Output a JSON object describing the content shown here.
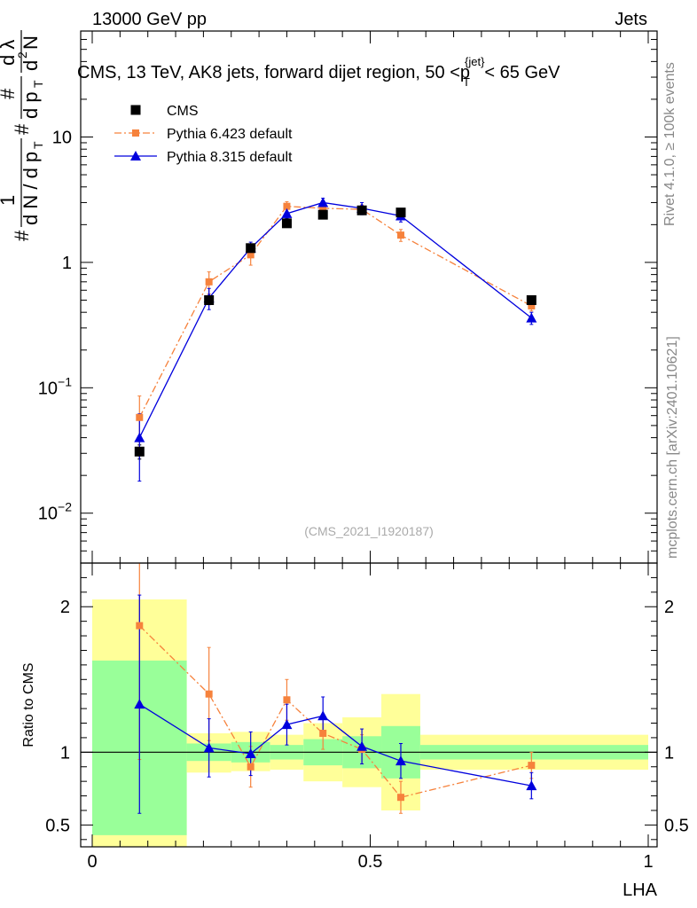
{
  "header": {
    "left": "13000 GeV pp",
    "right": "Jets"
  },
  "side_labels": {
    "rivet": "Rivet 4.1.0, ≥ 100k events",
    "mcplots": "mcplots.cern.ch [arXiv:2401.10621]"
  },
  "chart_data": [
    {
      "type": "line",
      "panel": "main",
      "title": "CMS, 13 TeV, AK8 jets, forward dijet region, 50 <p_T^{jet}< 65 GeV",
      "ylabel": "1/dN/dp_T d²N/dp_T dλ",
      "xlabel": "",
      "yscale": "log",
      "xlim": [
        0,
        1
      ],
      "ylim": [
        0.004,
        70
      ],
      "yticks": [
        {
          "value": 0.01,
          "label": "10^-2"
        },
        {
          "value": 0.1,
          "label": "10^-1"
        },
        {
          "value": 1,
          "label": "1"
        },
        {
          "value": 10,
          "label": "10"
        }
      ],
      "watermark": "(CMS_2021_I1920187)",
      "legend": [
        {
          "name": "CMS",
          "marker": "square",
          "color": "#000000"
        },
        {
          "name": "Pythia 6.423 default",
          "marker": "square",
          "color": "#f6823c",
          "line": "dashdot"
        },
        {
          "name": "Pythia 8.315 default",
          "marker": "triangle",
          "color": "#0000dd",
          "line": "solid"
        }
      ],
      "series": [
        {
          "name": "CMS",
          "color": "#000000",
          "x": [
            0.085,
            0.21,
            0.285,
            0.35,
            0.415,
            0.485,
            0.555,
            0.79
          ],
          "y": [
            0.031,
            0.5,
            1.3,
            2.05,
            2.4,
            2.6,
            2.5,
            0.5
          ],
          "err": [
            0.004,
            0.04,
            0.08,
            0.1,
            0.12,
            0.12,
            0.12,
            0.03
          ]
        },
        {
          "name": "Pythia 6.423 default",
          "color": "#f6823c",
          "x": [
            0.085,
            0.21,
            0.285,
            0.35,
            0.415,
            0.485,
            0.555,
            0.79
          ],
          "y": [
            0.058,
            0.7,
            1.15,
            2.8,
            2.7,
            2.65,
            1.65,
            0.45
          ],
          "err": [
            0.028,
            0.14,
            0.2,
            0.25,
            0.22,
            0.22,
            0.18,
            0.04
          ]
        },
        {
          "name": "Pythia 8.315 default",
          "color": "#0000dd",
          "x": [
            0.085,
            0.21,
            0.285,
            0.35,
            0.415,
            0.485,
            0.555,
            0.79
          ],
          "y": [
            0.04,
            0.52,
            1.3,
            2.45,
            3.0,
            2.7,
            2.35,
            0.36
          ],
          "err": [
            0.022,
            0.1,
            0.15,
            0.2,
            0.25,
            0.3,
            0.25,
            0.04
          ]
        }
      ]
    },
    {
      "type": "line",
      "panel": "ratio",
      "title": "",
      "xlabel": "LHA",
      "ylabel": "Ratio to CMS",
      "xlim": [
        0,
        1
      ],
      "ylim": [
        0.35,
        2.3
      ],
      "xticks": [
        {
          "value": 0,
          "label": "0"
        },
        {
          "value": 0.5,
          "label": "0.5"
        },
        {
          "value": 1,
          "label": "1"
        }
      ],
      "yticks": [
        {
          "value": 0.5,
          "label": "0.5"
        },
        {
          "value": 1,
          "label": "1"
        },
        {
          "value": 2,
          "label": "2"
        }
      ],
      "bands": [
        {
          "x0": 0.0,
          "x1": 0.17,
          "yellow": [
            0.3,
            2.05
          ],
          "green": [
            0.43,
            1.63
          ]
        },
        {
          "x0": 0.17,
          "x1": 0.25,
          "yellow": [
            0.86,
            1.13
          ],
          "green": [
            0.94,
            1.06
          ]
        },
        {
          "x0": 0.25,
          "x1": 0.32,
          "yellow": [
            0.87,
            1.14
          ],
          "green": [
            0.93,
            1.07
          ]
        },
        {
          "x0": 0.32,
          "x1": 0.38,
          "yellow": [
            0.88,
            1.12
          ],
          "green": [
            0.95,
            1.05
          ]
        },
        {
          "x0": 0.38,
          "x1": 0.45,
          "yellow": [
            0.8,
            1.2
          ],
          "green": [
            0.91,
            1.09
          ]
        },
        {
          "x0": 0.45,
          "x1": 0.52,
          "yellow": [
            0.76,
            1.24
          ],
          "green": [
            0.89,
            1.11
          ]
        },
        {
          "x0": 0.52,
          "x1": 0.59,
          "yellow": [
            0.6,
            1.4
          ],
          "green": [
            0.82,
            1.18
          ]
        },
        {
          "x0": 0.59,
          "x1": 1.0,
          "yellow": [
            0.88,
            1.12
          ],
          "green": [
            0.95,
            1.05
          ]
        }
      ],
      "series": [
        {
          "name": "Pythia 6.423 default",
          "color": "#f6823c",
          "x": [
            0.085,
            0.21,
            0.285,
            0.35,
            0.415,
            0.485,
            0.555,
            0.79
          ],
          "y": [
            1.87,
            1.4,
            0.9,
            1.36,
            1.13,
            1.02,
            0.69,
            0.91
          ],
          "err": [
            0.92,
            0.32,
            0.14,
            0.14,
            0.11,
            0.1,
            0.11,
            0.09
          ]
        },
        {
          "name": "Pythia 8.315 default",
          "color": "#0000dd",
          "x": [
            0.085,
            0.21,
            0.285,
            0.35,
            0.415,
            0.485,
            0.555,
            0.79
          ],
          "y": [
            1.33,
            1.03,
            0.99,
            1.19,
            1.25,
            1.04,
            0.94,
            0.77
          ],
          "err": [
            0.75,
            0.2,
            0.15,
            0.14,
            0.13,
            0.12,
            0.12,
            0.09
          ]
        }
      ]
    }
  ]
}
